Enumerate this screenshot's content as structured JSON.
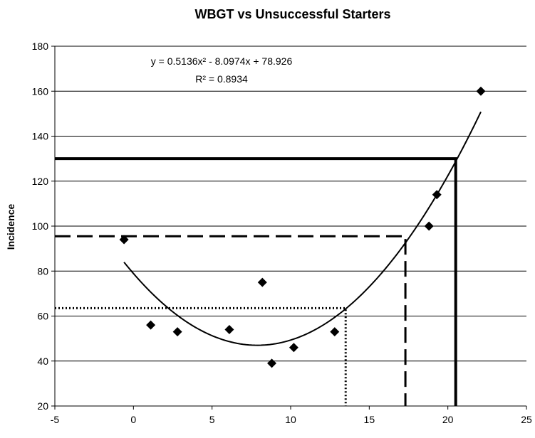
{
  "chart_data": {
    "type": "scatter",
    "title": "WBGT vs Unsuccessful Starters",
    "xlabel": "",
    "ylabel": "Incidence",
    "xlim": [
      -5,
      25
    ],
    "ylim": [
      20,
      180
    ],
    "x_ticks": [
      -5,
      0,
      5,
      10,
      15,
      20,
      25
    ],
    "y_ticks": [
      20,
      40,
      60,
      80,
      100,
      120,
      140,
      160,
      180
    ],
    "grid": "horizontal",
    "series": [
      {
        "x": [
          -0.6,
          1.1,
          2.8,
          6.1,
          8.2,
          8.8,
          10.2,
          12.8,
          18.8,
          19.3,
          22.1
        ],
        "y": [
          94,
          56,
          53,
          54,
          75,
          39,
          46,
          53,
          100,
          114,
          160
        ],
        "marker": "diamond",
        "color": "#000000"
      }
    ],
    "trendline": {
      "type": "polynomial",
      "coefficients": [
        0.5136,
        -8.0974,
        78.926
      ],
      "x_range": [
        -0.6,
        22.1
      ],
      "equation_text": "y = 0.5136x² - 8.0974x + 78.926",
      "r2_text": "R² = 0.8934"
    },
    "reference_lines": [
      {
        "style": "solid",
        "x": 20.5,
        "y": 130
      },
      {
        "style": "dashed",
        "x": 17.3,
        "y": 95.5
      },
      {
        "style": "dotted",
        "x": 13.5,
        "y": 63.5
      }
    ]
  }
}
